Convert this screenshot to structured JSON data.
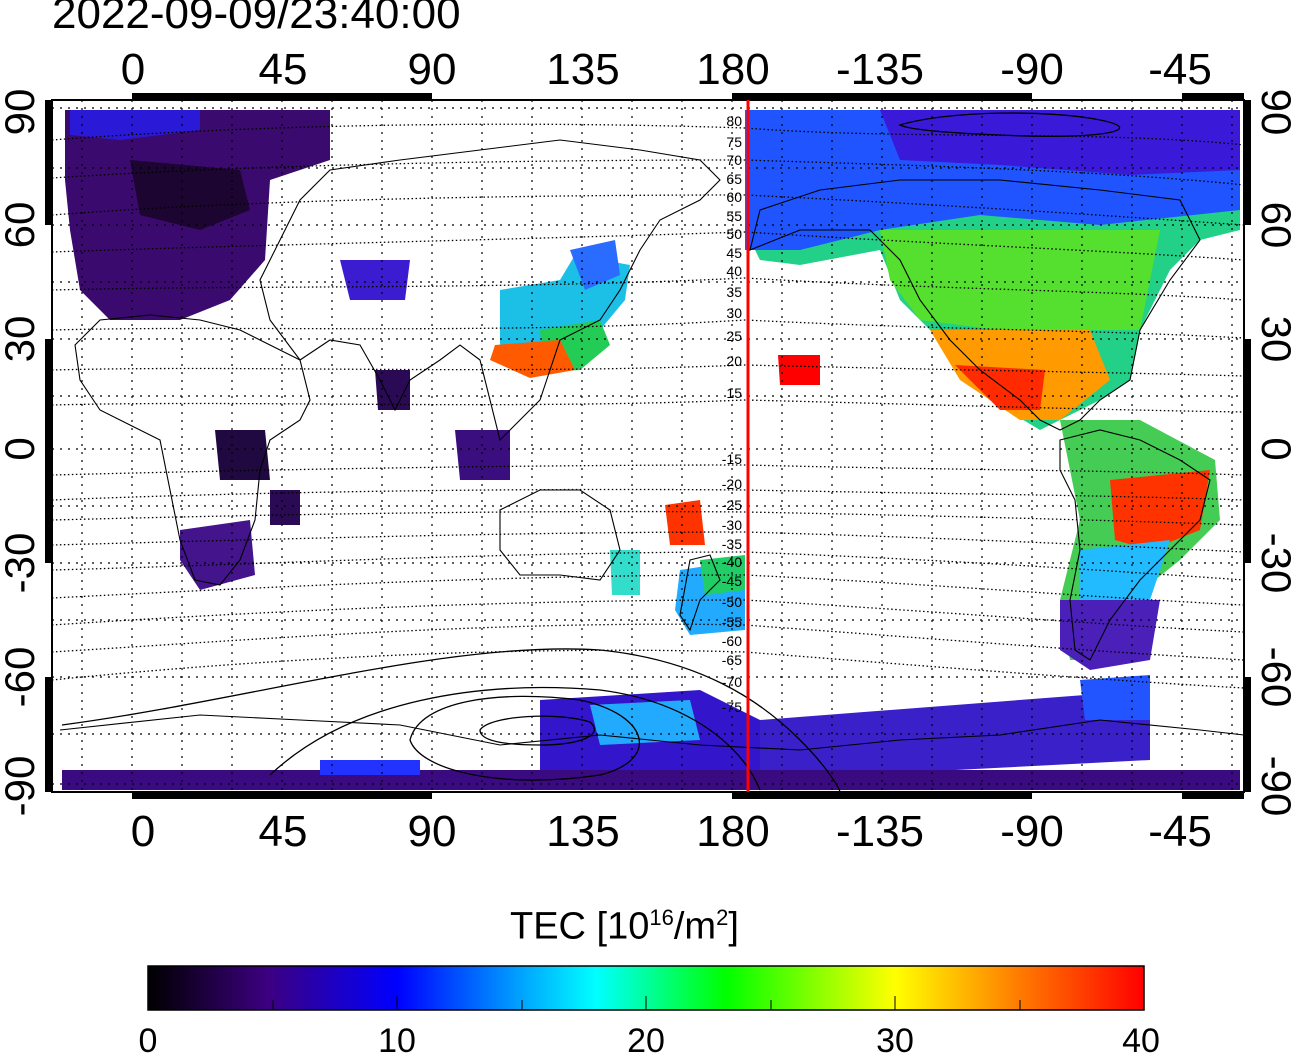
{
  "timestamp": "2022-09-09/23:40:00",
  "map": {
    "lon_ticks": [
      "0",
      "45",
      "90",
      "135",
      "180",
      "-135",
      "-90",
      "-45"
    ],
    "lat_ticks_left": [
      "90",
      "60",
      "30",
      "0",
      "-30",
      "-60",
      "-90"
    ],
    "lat_ticks_right": [
      "90",
      "60",
      "30",
      "0",
      "-30",
      "-60",
      "-90"
    ],
    "contour_labels": [
      "80",
      "75",
      "70",
      "65",
      "60",
      "55",
      "50",
      "45",
      "40",
      "35",
      "30",
      "25",
      "20",
      "15",
      "-15",
      "-20",
      "-25",
      "-30",
      "-35",
      "-40",
      "-45",
      "-50",
      "-55",
      "-60",
      "-65",
      "-70",
      "-75"
    ],
    "terminator_color": "#ff0000"
  },
  "colorbar": {
    "label_main": "TEC  [10",
    "label_exp1": "16",
    "label_mid": "/m",
    "label_exp2": "2",
    "label_end": "]",
    "ticks": [
      "0",
      "10",
      "20",
      "30",
      "40"
    ],
    "colors": [
      "#000000",
      "#3c0080",
      "#0000ff",
      "#00ffff",
      "#00ff00",
      "#ffff00",
      "#ff8000",
      "#ff0000"
    ]
  }
}
